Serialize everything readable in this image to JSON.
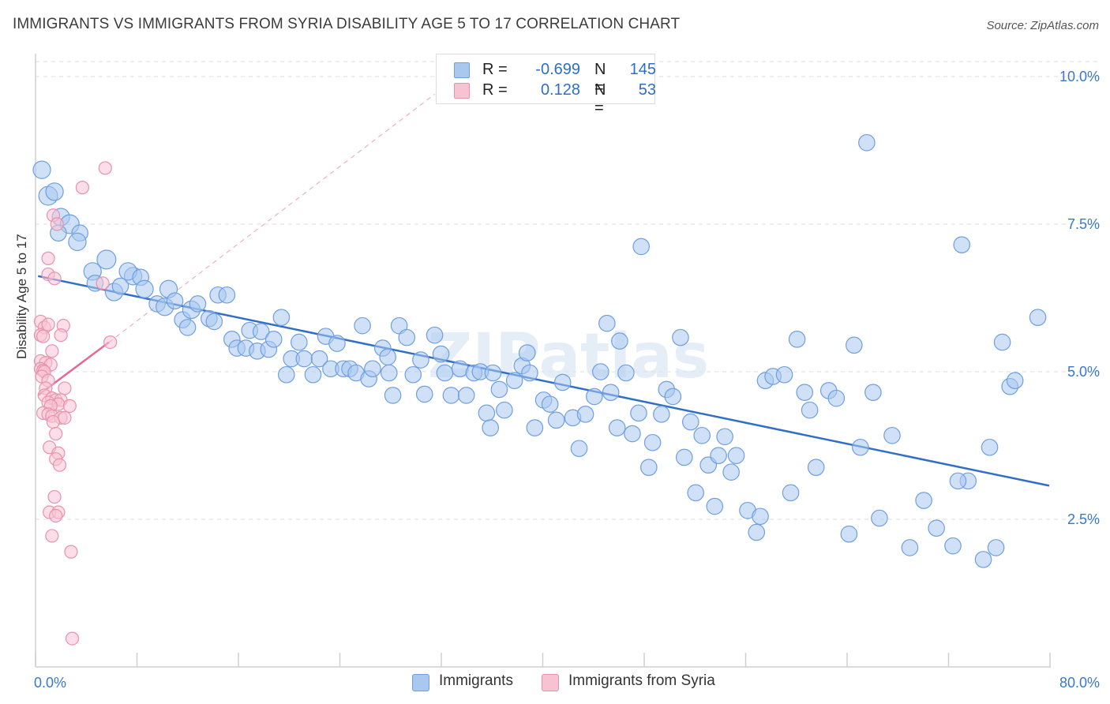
{
  "title": "IMMIGRANTS VS IMMIGRANTS FROM SYRIA DISABILITY AGE 5 TO 17 CORRELATION CHART",
  "source": "Source: ZipAtlas.com",
  "watermark": "ZIPatlas",
  "legend_top": {
    "rows": [
      {
        "label": "R =",
        "r": "-0.699",
        "n_label": "N =",
        "n": "145",
        "color": "#a9c8f0",
        "border": "#6f9fe0"
      },
      {
        "label": "R =",
        "r": "0.128",
        "n_label": "N =",
        "n": "53",
        "color": "#f7c3d3",
        "border": "#e892ad"
      }
    ]
  },
  "legend_bottom": {
    "items": [
      {
        "label": "Immigrants",
        "color": "#a9c8f0",
        "border": "#6f9fe0"
      },
      {
        "label": "Immigrants from Syria",
        "color": "#f7c3d3",
        "border": "#e892ad"
      }
    ]
  },
  "chart_data": {
    "type": "scatter",
    "title": "IMMIGRANTS VS IMMIGRANTS FROM SYRIA DISABILITY AGE 5 TO 17 CORRELATION CHART",
    "xlabel": "",
    "ylabel": "Disability Age 5 to 17",
    "xlim": [
      0,
      80
    ],
    "ylim": [
      0,
      10.5
    ],
    "x_tick_labels": [
      "0.0%",
      "80.0%"
    ],
    "y_ticks": [
      2.5,
      5.0,
      7.5,
      10.0
    ],
    "y_tick_labels": [
      "2.5%",
      "5.0%",
      "7.5%",
      "10.0%"
    ],
    "grid": true,
    "colors": {
      "immigrants": "#5b93dd",
      "syria": "#ec8fae",
      "trend_blue": "#2f6fc7",
      "trend_pink": "#e46a93",
      "tick_text": "#3a78c9"
    },
    "series": [
      {
        "name": "Immigrants",
        "R": -0.699,
        "N": 145,
        "trend": {
          "x0": 0.2,
          "y0": 6.62,
          "x1": 80.0,
          "y1": 3.07
        },
        "points": [
          [
            0.5,
            8.42,
            1.3
          ],
          [
            1.0,
            7.98,
            1.4
          ],
          [
            1.5,
            8.05,
            1.3
          ],
          [
            2.0,
            7.62,
            1.3
          ],
          [
            2.7,
            7.5,
            1.4
          ],
          [
            1.8,
            7.35,
            1.2
          ],
          [
            3.5,
            7.35,
            1.2
          ],
          [
            3.3,
            7.2,
            1.3
          ],
          [
            5.6,
            6.9,
            1.4
          ],
          [
            4.5,
            6.7,
            1.3
          ],
          [
            4.7,
            6.5,
            1.2
          ],
          [
            6.2,
            6.35,
            1.3
          ],
          [
            6.7,
            6.45,
            1.2
          ],
          [
            7.7,
            6.62,
            1.3
          ],
          [
            7.3,
            6.7,
            1.3
          ],
          [
            8.3,
            6.6,
            1.2
          ],
          [
            8.6,
            6.4,
            1.3
          ],
          [
            9.6,
            6.15,
            1.2
          ],
          [
            10.2,
            6.1,
            1.3
          ],
          [
            10.5,
            6.4,
            1.3
          ],
          [
            11.0,
            6.2,
            1.2
          ],
          [
            11.6,
            5.88,
            1.2
          ],
          [
            12.0,
            5.75,
            1.2
          ],
          [
            12.3,
            6.05,
            1.3
          ],
          [
            12.8,
            6.15,
            1.2
          ],
          [
            13.7,
            5.9,
            1.2
          ],
          [
            14.1,
            5.85,
            1.2
          ],
          [
            14.4,
            6.3,
            1.2
          ],
          [
            15.1,
            6.3,
            1.2
          ],
          [
            15.5,
            5.55,
            1.2
          ],
          [
            15.9,
            5.4,
            1.2
          ],
          [
            16.6,
            5.4,
            1.2
          ],
          [
            16.9,
            5.7,
            1.2
          ],
          [
            17.5,
            5.35,
            1.2
          ],
          [
            17.8,
            5.68,
            1.2
          ],
          [
            18.4,
            5.38,
            1.2
          ],
          [
            18.8,
            5.55,
            1.2
          ],
          [
            19.4,
            5.92,
            1.2
          ],
          [
            19.8,
            4.95,
            1.2
          ],
          [
            20.2,
            5.22,
            1.2
          ],
          [
            20.8,
            5.5,
            1.2
          ],
          [
            21.2,
            5.22,
            1.2
          ],
          [
            21.9,
            4.95,
            1.2
          ],
          [
            22.4,
            5.22,
            1.2
          ],
          [
            22.9,
            5.6,
            1.2
          ],
          [
            23.3,
            5.05,
            1.2
          ],
          [
            23.8,
            5.48,
            1.2
          ],
          [
            24.3,
            5.05,
            1.2
          ],
          [
            24.8,
            5.05,
            1.2
          ],
          [
            25.3,
            4.98,
            1.2
          ],
          [
            25.8,
            5.78,
            1.2
          ],
          [
            26.3,
            4.88,
            1.2
          ],
          [
            26.6,
            5.05,
            1.2
          ],
          [
            27.4,
            5.4,
            1.2
          ],
          [
            27.8,
            5.25,
            1.2
          ],
          [
            28.2,
            4.6,
            1.2
          ],
          [
            28.7,
            5.78,
            1.2
          ],
          [
            29.3,
            5.58,
            1.2
          ],
          [
            29.8,
            4.95,
            1.2
          ],
          [
            30.4,
            5.2,
            1.2
          ],
          [
            30.7,
            4.62,
            1.2
          ],
          [
            31.5,
            5.62,
            1.2
          ],
          [
            32.0,
            5.3,
            1.2
          ],
          [
            32.3,
            4.98,
            1.2
          ],
          [
            32.8,
            4.6,
            1.2
          ],
          [
            33.5,
            5.05,
            1.2
          ],
          [
            34.0,
            4.6,
            1.2
          ],
          [
            34.6,
            4.98,
            1.2
          ],
          [
            35.1,
            5.0,
            1.2
          ],
          [
            35.6,
            4.3,
            1.2
          ],
          [
            36.1,
            4.98,
            1.2
          ],
          [
            36.6,
            4.7,
            1.2
          ],
          [
            37.0,
            4.35,
            1.2
          ],
          [
            37.8,
            4.85,
            1.2
          ],
          [
            38.4,
            5.1,
            1.2
          ],
          [
            38.8,
            5.32,
            1.2
          ],
          [
            39.0,
            4.98,
            1.2
          ],
          [
            39.4,
            4.05,
            1.2
          ],
          [
            40.1,
            4.52,
            1.2
          ],
          [
            40.6,
            4.45,
            1.2
          ],
          [
            41.1,
            4.18,
            1.2
          ],
          [
            41.6,
            4.82,
            1.2
          ],
          [
            42.4,
            4.22,
            1.2
          ],
          [
            42.9,
            3.7,
            1.2
          ],
          [
            43.4,
            4.28,
            1.2
          ],
          [
            44.1,
            4.58,
            1.2
          ],
          [
            44.6,
            5.0,
            1.2
          ],
          [
            45.1,
            5.82,
            1.2
          ],
          [
            45.4,
            4.65,
            1.2
          ],
          [
            46.1,
            5.52,
            1.2
          ],
          [
            46.6,
            4.98,
            1.2
          ],
          [
            47.1,
            3.95,
            1.2
          ],
          [
            47.6,
            4.3,
            1.2
          ],
          [
            48.4,
            3.38,
            1.2
          ],
          [
            48.7,
            3.8,
            1.2
          ],
          [
            49.4,
            4.28,
            1.2
          ],
          [
            49.8,
            4.7,
            1.2
          ],
          [
            50.3,
            4.58,
            1.2
          ],
          [
            50.9,
            5.58,
            1.2
          ],
          [
            51.2,
            3.55,
            1.2
          ],
          [
            51.7,
            4.15,
            1.2
          ],
          [
            52.1,
            2.95,
            1.2
          ],
          [
            52.6,
            3.92,
            1.2
          ],
          [
            53.1,
            3.42,
            1.2
          ],
          [
            53.6,
            2.72,
            1.2
          ],
          [
            53.9,
            3.58,
            1.2
          ],
          [
            54.4,
            3.9,
            1.2
          ],
          [
            54.9,
            3.3,
            1.2
          ],
          [
            55.3,
            3.58,
            1.2
          ],
          [
            56.2,
            2.65,
            1.2
          ],
          [
            56.9,
            2.28,
            1.2
          ],
          [
            57.2,
            2.55,
            1.2
          ],
          [
            57.6,
            4.85,
            1.2
          ],
          [
            58.2,
            4.92,
            1.2
          ],
          [
            59.1,
            4.95,
            1.2
          ],
          [
            59.6,
            2.95,
            1.2
          ],
          [
            60.1,
            5.55,
            1.2
          ],
          [
            60.7,
            4.65,
            1.2
          ],
          [
            61.1,
            4.35,
            1.2
          ],
          [
            61.6,
            3.38,
            1.2
          ],
          [
            62.6,
            4.68,
            1.2
          ],
          [
            63.2,
            4.55,
            1.2
          ],
          [
            64.2,
            2.25,
            1.2
          ],
          [
            64.6,
            5.45,
            1.2
          ],
          [
            65.1,
            3.72,
            1.2
          ],
          [
            65.6,
            8.88,
            1.2
          ],
          [
            66.1,
            4.65,
            1.2
          ],
          [
            66.6,
            2.52,
            1.2
          ],
          [
            67.6,
            3.92,
            1.2
          ],
          [
            69.0,
            2.02,
            1.2
          ],
          [
            70.1,
            2.82,
            1.2
          ],
          [
            71.1,
            2.35,
            1.2
          ],
          [
            72.4,
            2.05,
            1.2
          ],
          [
            73.1,
            7.15,
            1.2
          ],
          [
            73.6,
            3.15,
            1.2
          ],
          [
            72.8,
            3.15,
            1.2
          ],
          [
            74.8,
            1.82,
            1.2
          ],
          [
            75.3,
            3.72,
            1.2
          ],
          [
            75.8,
            2.02,
            1.2
          ],
          [
            76.3,
            5.5,
            1.2
          ],
          [
            76.9,
            4.75,
            1.2
          ],
          [
            77.3,
            4.85,
            1.2
          ],
          [
            79.1,
            5.92,
            1.2
          ],
          [
            47.8,
            7.12,
            1.2
          ],
          [
            45.9,
            4.05,
            1.2
          ],
          [
            35.9,
            4.05,
            1.2
          ],
          [
            27.9,
            4.98,
            1.2
          ]
        ]
      },
      {
        "name": "Immigrants from Syria",
        "R": 0.128,
        "N": 53,
        "trend": {
          "x0": 0.2,
          "y0": 4.6,
          "x1": 5.8,
          "y1": 5.5
        },
        "trend_extension": {
          "x0": 5.8,
          "y0": 5.5,
          "x1": 31.5,
          "y1": 9.7
        },
        "points": [
          [
            5.5,
            8.45,
            1.0
          ],
          [
            3.7,
            8.12,
            1.0
          ],
          [
            1.4,
            7.65,
            1.0
          ],
          [
            1.7,
            7.5,
            1.0
          ],
          [
            1.0,
            6.92,
            1.0
          ],
          [
            1.0,
            6.65,
            1.0
          ],
          [
            1.5,
            6.58,
            1.0
          ],
          [
            5.3,
            6.5,
            1.0
          ],
          [
            0.4,
            5.85,
            1.0
          ],
          [
            0.7,
            5.75,
            1.0
          ],
          [
            1.0,
            5.8,
            1.0
          ],
          [
            2.2,
            5.78,
            1.0
          ],
          [
            0.4,
            5.62,
            1.0
          ],
          [
            0.6,
            5.6,
            1.0
          ],
          [
            2.0,
            5.62,
            1.0
          ],
          [
            5.9,
            5.5,
            1.0
          ],
          [
            1.3,
            5.35,
            1.0
          ],
          [
            0.4,
            5.18,
            1.0
          ],
          [
            0.8,
            5.15,
            1.0
          ],
          [
            1.2,
            5.12,
            1.0
          ],
          [
            0.4,
            5.05,
            1.0
          ],
          [
            0.6,
            5.02,
            1.0
          ],
          [
            0.7,
            5.0,
            1.0
          ],
          [
            0.5,
            4.92,
            1.0
          ],
          [
            1.0,
            4.85,
            1.0
          ],
          [
            0.8,
            4.72,
            1.0
          ],
          [
            2.3,
            4.72,
            1.0
          ],
          [
            0.7,
            4.6,
            1.0
          ],
          [
            1.3,
            4.55,
            1.0
          ],
          [
            1.6,
            4.52,
            1.0
          ],
          [
            2.0,
            4.52,
            1.0
          ],
          [
            1.0,
            4.48,
            1.0
          ],
          [
            1.8,
            4.45,
            1.0
          ],
          [
            1.2,
            4.42,
            1.0
          ],
          [
            2.7,
            4.42,
            1.0
          ],
          [
            0.6,
            4.3,
            1.0
          ],
          [
            1.0,
            4.28,
            1.0
          ],
          [
            1.3,
            4.25,
            1.0
          ],
          [
            2.0,
            4.22,
            1.0
          ],
          [
            1.4,
            4.15,
            1.0
          ],
          [
            1.6,
            3.95,
            1.0
          ],
          [
            1.1,
            3.72,
            1.0
          ],
          [
            1.8,
            3.62,
            1.0
          ],
          [
            1.6,
            3.52,
            1.0
          ],
          [
            1.9,
            3.42,
            1.0
          ],
          [
            1.5,
            2.88,
            1.0
          ],
          [
            1.1,
            2.62,
            1.0
          ],
          [
            1.8,
            2.62,
            1.0
          ],
          [
            1.6,
            2.56,
            1.0
          ],
          [
            1.3,
            2.22,
            1.0
          ],
          [
            2.8,
            1.95,
            1.0
          ],
          [
            2.9,
            0.48,
            1.0
          ],
          [
            2.3,
            4.22,
            1.0
          ]
        ]
      }
    ]
  }
}
